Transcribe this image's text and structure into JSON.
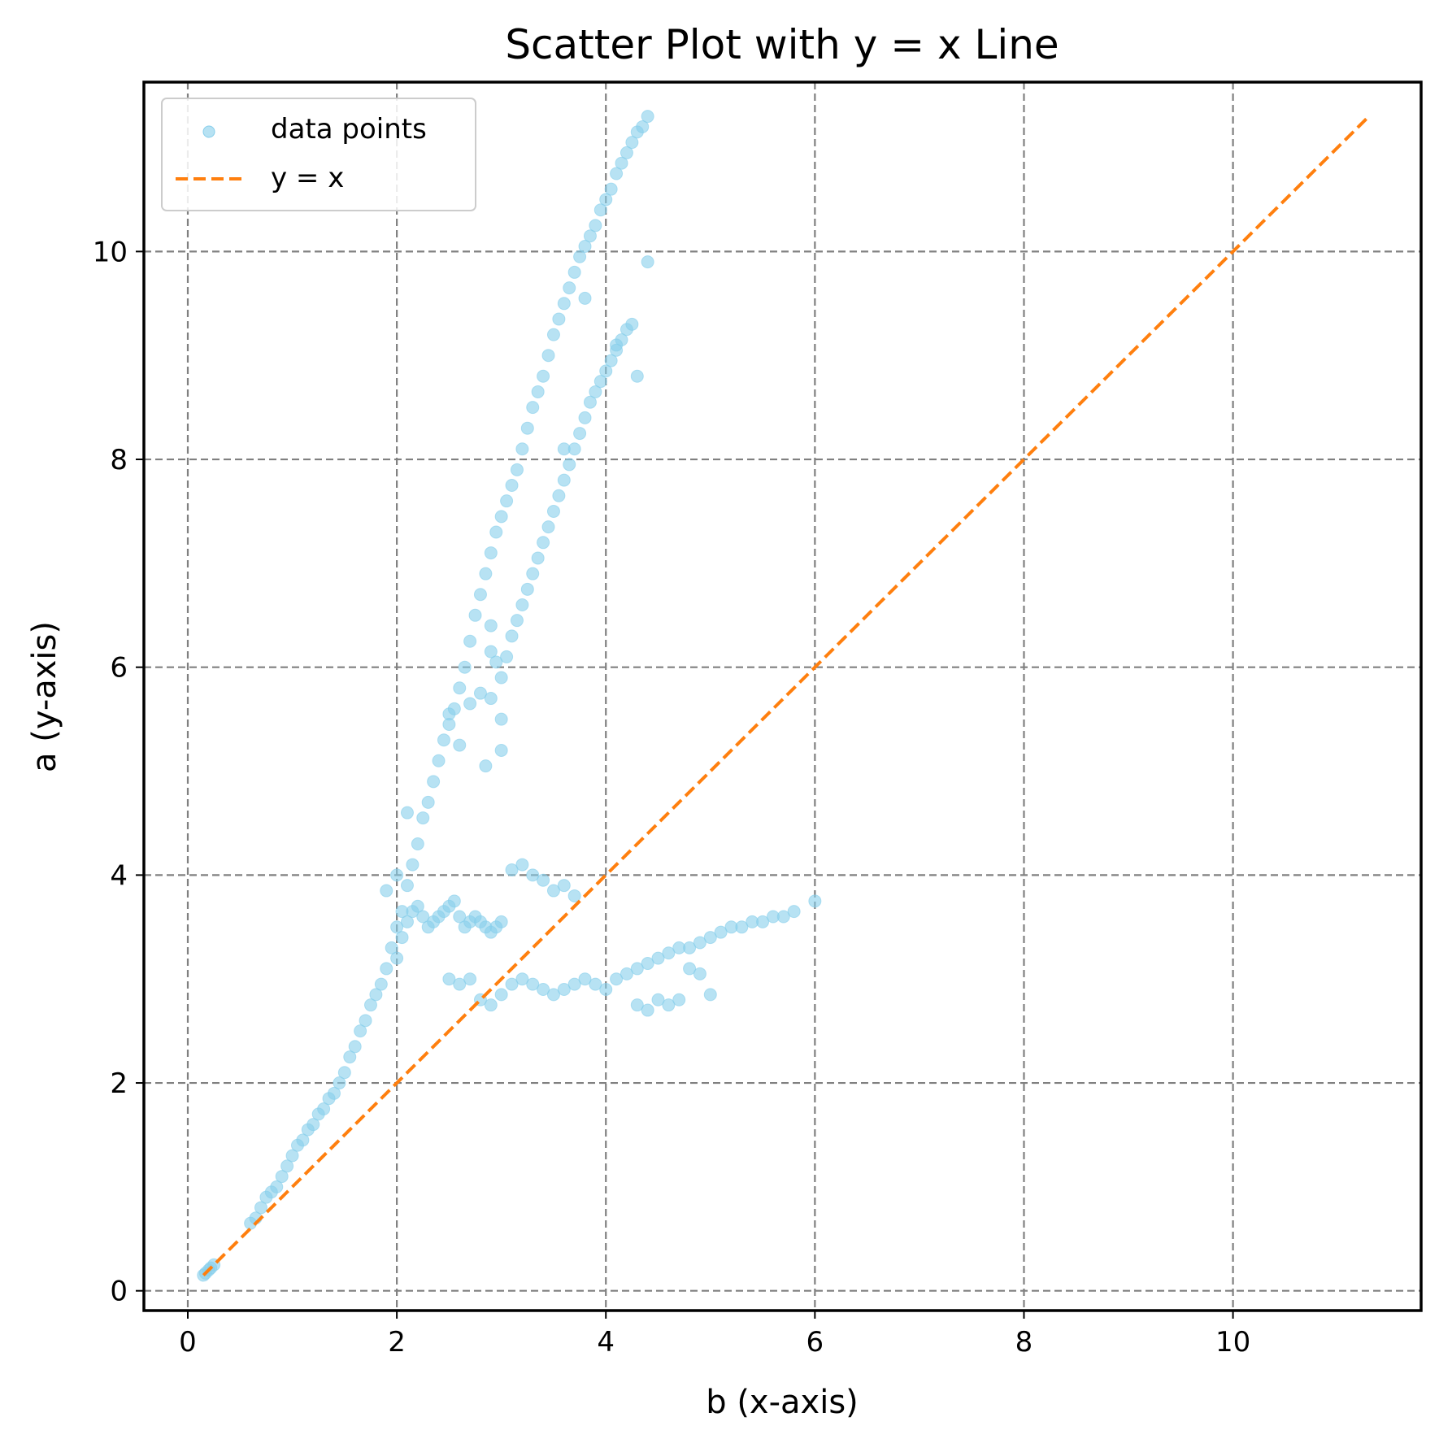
{
  "chart_data": {
    "type": "scatter",
    "title": "Scatter Plot with y = x Line",
    "xlabel": "b (x-axis)",
    "ylabel": "a (y-axis)",
    "xlim": [
      -0.42,
      11.8
    ],
    "ylim": [
      -0.19,
      11.63
    ],
    "xticks": [
      0,
      2,
      4,
      6,
      8,
      10
    ],
    "yticks": [
      0,
      2,
      4,
      6,
      8,
      10
    ],
    "xtick_labels": [
      "0",
      "2",
      "4",
      "6",
      "8",
      "10"
    ],
    "ytick_labels": [
      "0",
      "2",
      "4",
      "6",
      "8",
      "10"
    ],
    "grid": true,
    "legend_position": "upper-left",
    "scatter_color": "#87CEEB",
    "line_color": "#FF7F0E",
    "series": [
      {
        "name": "data points",
        "kind": "scatter",
        "x": [
          0.15,
          0.17,
          0.2,
          0.22,
          0.25,
          0.6,
          0.65,
          0.7,
          0.75,
          0.8,
          0.85,
          0.9,
          0.95,
          1.0,
          1.05,
          1.1,
          1.15,
          1.2,
          1.25,
          1.3,
          1.35,
          1.4,
          1.45,
          1.5,
          1.55,
          1.6,
          1.65,
          1.7,
          1.75,
          1.8,
          1.85,
          1.9,
          1.95,
          2.0,
          2.05,
          2.1,
          2.15,
          2.2,
          2.25,
          2.3,
          2.35,
          2.4,
          2.45,
          2.5,
          2.55,
          2.6,
          2.65,
          2.7,
          2.75,
          2.8,
          2.85,
          2.9,
          2.95,
          3.0,
          3.05,
          3.1,
          3.15,
          3.2,
          3.25,
          3.3,
          3.35,
          3.4,
          3.45,
          3.5,
          3.55,
          3.6,
          3.65,
          3.7,
          3.75,
          3.8,
          3.85,
          3.9,
          3.95,
          4.0,
          4.05,
          4.1,
          4.15,
          4.2,
          4.25,
          4.3,
          4.35,
          4.4,
          3.0,
          3.05,
          3.1,
          3.15,
          3.2,
          3.25,
          3.3,
          3.35,
          3.4,
          3.45,
          3.5,
          3.55,
          3.6,
          3.65,
          3.7,
          3.75,
          3.8,
          3.85,
          3.9,
          3.95,
          4.0,
          4.05,
          4.1,
          4.15,
          4.2,
          4.25,
          2.0,
          2.05,
          2.1,
          2.15,
          2.2,
          2.25,
          2.3,
          2.35,
          2.4,
          2.45,
          2.5,
          2.55,
          2.6,
          2.65,
          2.7,
          2.75,
          2.8,
          2.85,
          2.9,
          2.95,
          3.0,
          2.5,
          2.6,
          2.7,
          2.8,
          2.9,
          3.0,
          3.1,
          3.2,
          3.3,
          3.4,
          3.5,
          3.6,
          3.7,
          3.8,
          3.9,
          4.0,
          4.1,
          4.2,
          4.3,
          4.4,
          4.5,
          4.6,
          4.7,
          4.8,
          4.9,
          5.0,
          5.1,
          5.2,
          5.3,
          5.4,
          5.5,
          5.6,
          5.7,
          5.8,
          6.0,
          4.3,
          4.4,
          4.5,
          4.6,
          4.7,
          4.8,
          4.9,
          5.0,
          3.1,
          3.2,
          3.3,
          3.4,
          3.5,
          3.6,
          3.7,
          4.4,
          4.3,
          3.0,
          3.6,
          3.8,
          2.9,
          3.0,
          2.85,
          4.1,
          2.5,
          2.6,
          2.7,
          2.8,
          2.9,
          2.95,
          2.9,
          1.9,
          2.0,
          2.1
        ],
        "y": [
          0.15,
          0.17,
          0.2,
          0.22,
          0.25,
          0.65,
          0.7,
          0.8,
          0.9,
          0.95,
          1.0,
          1.1,
          1.2,
          1.3,
          1.4,
          1.45,
          1.55,
          1.6,
          1.7,
          1.75,
          1.85,
          1.9,
          2.0,
          2.1,
          2.25,
          2.35,
          2.5,
          2.6,
          2.75,
          2.85,
          2.95,
          3.1,
          3.3,
          3.5,
          3.65,
          3.9,
          4.1,
          4.3,
          4.55,
          4.7,
          4.9,
          5.1,
          5.3,
          5.45,
          5.6,
          5.8,
          6.0,
          6.25,
          6.5,
          6.7,
          6.9,
          7.1,
          7.3,
          7.45,
          7.6,
          7.75,
          7.9,
          8.1,
          8.3,
          8.5,
          8.65,
          8.8,
          9.0,
          9.2,
          9.35,
          9.5,
          9.65,
          9.8,
          9.95,
          10.05,
          10.15,
          10.25,
          10.4,
          10.5,
          10.6,
          10.75,
          10.85,
          10.95,
          11.05,
          11.15,
          11.2,
          11.3,
          5.9,
          6.1,
          6.3,
          6.45,
          6.6,
          6.75,
          6.9,
          7.05,
          7.2,
          7.35,
          7.5,
          7.65,
          7.8,
          7.95,
          8.1,
          8.25,
          8.4,
          8.55,
          8.65,
          8.75,
          8.85,
          8.95,
          9.05,
          9.15,
          9.25,
          9.3,
          3.2,
          3.4,
          3.55,
          3.65,
          3.7,
          3.6,
          3.5,
          3.55,
          3.6,
          3.65,
          3.7,
          3.75,
          3.6,
          3.5,
          3.55,
          3.6,
          3.55,
          3.5,
          3.45,
          3.5,
          3.55,
          3.0,
          2.95,
          3.0,
          2.8,
          2.75,
          2.85,
          2.95,
          3.0,
          2.95,
          2.9,
          2.85,
          2.9,
          2.95,
          3.0,
          2.95,
          2.9,
          3.0,
          3.05,
          3.1,
          3.15,
          3.2,
          3.25,
          3.3,
          3.3,
          3.35,
          3.4,
          3.45,
          3.5,
          3.5,
          3.55,
          3.55,
          3.6,
          3.6,
          3.65,
          3.75,
          2.75,
          2.7,
          2.8,
          2.75,
          2.8,
          3.1,
          3.05,
          2.85,
          4.05,
          4.1,
          4.0,
          3.95,
          3.85,
          3.9,
          3.8,
          9.9,
          8.8,
          5.2,
          8.1,
          9.55,
          5.7,
          5.5,
          5.05,
          9.1,
          5.55,
          5.25,
          5.65,
          5.75,
          6.4,
          6.05,
          6.15,
          3.85,
          4.0,
          4.6
        ]
      },
      {
        "name": "y = x",
        "kind": "line",
        "x": [
          0.15,
          11.3
        ],
        "y": [
          0.15,
          11.3
        ]
      }
    ]
  }
}
